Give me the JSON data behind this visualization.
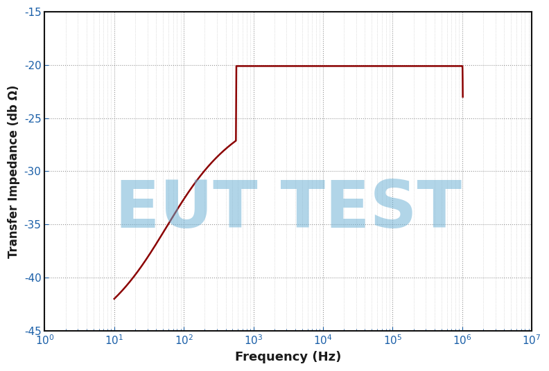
{
  "xlabel": "Frequency (Hz)",
  "ylabel": "Transfer Impedance (db Ω)",
  "xlim_log": [
    0,
    7
  ],
  "ylim": [
    -45,
    -15
  ],
  "yticks": [
    -45,
    -40,
    -35,
    -30,
    -25,
    -20,
    -15
  ],
  "line_color": "#8B0000",
  "line_width": 1.8,
  "grid_color": "#888888",
  "grid_style": ":",
  "grid_alpha": 0.9,
  "watermark_text": "EUT TEST",
  "watermark_color": "#6aafd4",
  "watermark_alpha": 0.52,
  "bg_color": "#ffffff",
  "xlabel_fontsize": 13,
  "ylabel_fontsize": 12,
  "tick_fontsize": 11,
  "tick_color": "#1a5fa8",
  "spine_color": "#111111"
}
